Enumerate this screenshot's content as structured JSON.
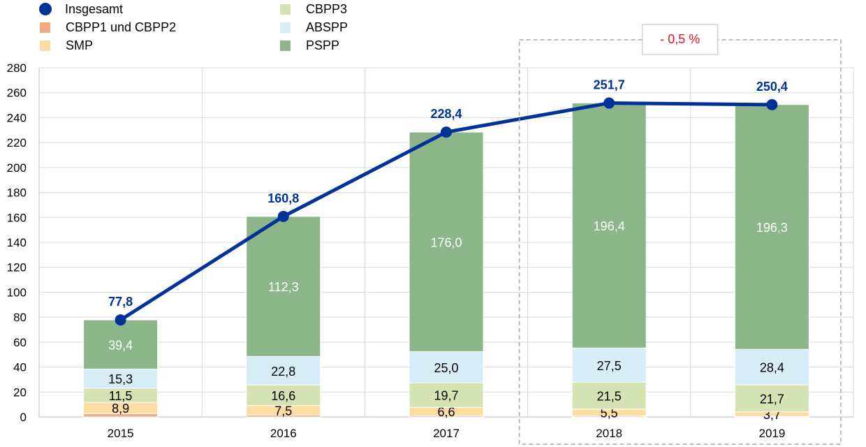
{
  "chart_data": {
    "type": "bar",
    "categories": [
      "2015",
      "2016",
      "2017",
      "2018",
      "2019"
    ],
    "series": [
      {
        "name": "CBPP1 und CBPP2",
        "values": [
          2.7,
          1.6,
          1.1,
          0.8,
          0.4
        ],
        "color": "#f4a97e",
        "label": false
      },
      {
        "name": "SMP",
        "values": [
          8.9,
          7.5,
          6.6,
          5.5,
          3.7
        ],
        "color": "#fddca2",
        "label": true
      },
      {
        "name": "CBPP3",
        "values": [
          11.5,
          16.6,
          19.7,
          21.5,
          21.7
        ],
        "color": "#d5e3b3",
        "label": true
      },
      {
        "name": "ABSPP",
        "values": [
          15.3,
          22.8,
          25.0,
          27.5,
          28.4
        ],
        "color": "#d6ecf7",
        "label": true
      },
      {
        "name": "PSPP",
        "values": [
          39.4,
          112.3,
          176.0,
          196.4,
          196.3
        ],
        "color": "#8db58a",
        "label": true
      }
    ],
    "series_labels": [
      [
        "",
        "8,9",
        "11,5",
        "15,3",
        "39,4"
      ],
      [
        "",
        "7,5",
        "16,6",
        "22,8",
        "112,3"
      ],
      [
        "",
        "6,6",
        "19,7",
        "25,0",
        "176,0"
      ],
      [
        "",
        "5,5",
        "21,5",
        "27,5",
        "196,4"
      ],
      [
        "",
        "3,7",
        "21,7",
        "28,4",
        "196,3"
      ]
    ],
    "line": {
      "name": "Insgesamt",
      "values": [
        77.8,
        160.8,
        228.4,
        251.7,
        250.4
      ],
      "labels": [
        "77,8",
        "160,8",
        "228,4",
        "251,7",
        "250,4"
      ],
      "color": "#003299"
    },
    "yticks": [
      "0",
      "20",
      "40",
      "60",
      "80",
      "100",
      "120",
      "140",
      "160",
      "180",
      "200",
      "220",
      "240",
      "260",
      "280"
    ],
    "ylim": [
      0,
      280
    ],
    "grid": true,
    "legend_placement": "top-left",
    "annotation": {
      "text": "- 0,5 %",
      "color": "#e8141c",
      "years": [
        "2018",
        "2019"
      ]
    }
  }
}
